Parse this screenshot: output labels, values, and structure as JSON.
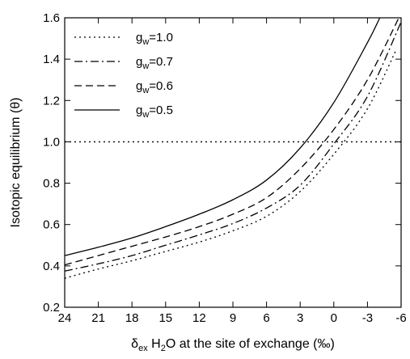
{
  "chart_data": {
    "type": "line",
    "xlabel": {
      "prefix": "δ",
      "sub": "ex",
      "mid1": " H",
      "sub2": "2",
      "rest": "O at the site of exchange (‰)"
    },
    "ylabel": "Isotopic equilibrium (θ)",
    "xlim": [
      24,
      -6
    ],
    "ylim": [
      0.2,
      1.6
    ],
    "x_reversed": true,
    "xticks": [
      24,
      21,
      18,
      15,
      12,
      9,
      6,
      3,
      0,
      -3,
      -6
    ],
    "yticks": [
      0.2,
      0.4,
      0.6,
      0.8,
      1.0,
      1.2,
      1.4,
      1.6
    ],
    "legend_position": "top-left",
    "reference_line": {
      "y": 1.0,
      "style": "dotted"
    },
    "series": [
      {
        "name": "g",
        "sub": "w",
        "suffix": "=1.0",
        "style": "dotted",
        "x": [
          24,
          21,
          18,
          15,
          12,
          9,
          6,
          3,
          0,
          -3,
          -5.6
        ],
        "y": [
          0.34,
          0.385,
          0.425,
          0.47,
          0.515,
          0.57,
          0.64,
          0.76,
          0.94,
          1.16,
          1.45
        ]
      },
      {
        "name": "g",
        "sub": "w",
        "suffix": "=0.7",
        "style": "dashdot",
        "x": [
          24,
          21,
          18,
          15,
          12,
          9,
          6,
          3,
          0,
          -3,
          -6
        ],
        "y": [
          0.375,
          0.41,
          0.45,
          0.5,
          0.55,
          0.605,
          0.68,
          0.79,
          0.99,
          1.22,
          1.58
        ]
      },
      {
        "name": "g",
        "sub": "w",
        "suffix": "=0.6",
        "style": "dashed",
        "x": [
          24,
          21,
          18,
          15,
          12,
          9,
          6,
          3,
          0,
          -3,
          -5.8
        ],
        "y": [
          0.405,
          0.45,
          0.495,
          0.54,
          0.59,
          0.65,
          0.73,
          0.87,
          1.06,
          1.3,
          1.6
        ]
      },
      {
        "name": "g",
        "sub": "w",
        "suffix": "=0.5",
        "style": "solid",
        "x": [
          24,
          21,
          18,
          15,
          12,
          9,
          6,
          3,
          0,
          -3,
          -4.1
        ],
        "y": [
          0.45,
          0.49,
          0.535,
          0.59,
          0.65,
          0.72,
          0.815,
          0.97,
          1.19,
          1.48,
          1.6
        ]
      }
    ]
  }
}
